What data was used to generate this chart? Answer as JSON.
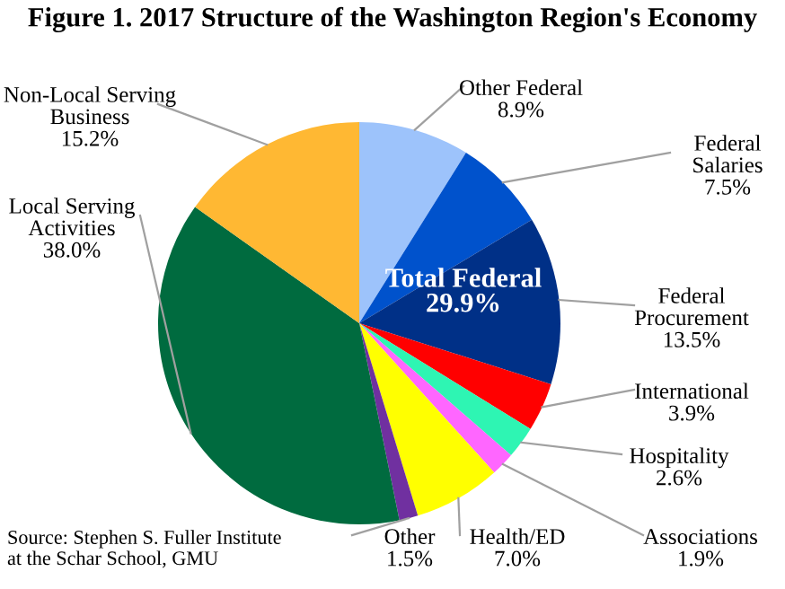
{
  "chart_data": {
    "type": "pie",
    "title": "Figure 1. 2017 Structure of the Washington Region's Economy",
    "categories": [
      "Other Federal",
      "Federal Salaries",
      "Federal Procurement",
      "International",
      "Hospitality",
      "Associations",
      "Health/ED",
      "Other",
      "Local Serving Activities",
      "Non-Local Serving Business"
    ],
    "values": [
      8.9,
      7.5,
      13.5,
      3.9,
      2.6,
      1.9,
      7.0,
      1.5,
      38.0,
      15.2
    ],
    "colors": [
      "#9dc3fb",
      "#0052cc",
      "#003087",
      "#ff0000",
      "#2ef5b3",
      "#ff66ff",
      "#ffff00",
      "#7030a0",
      "#006b3f",
      "#ffb833"
    ],
    "value_labels": [
      "8.9%",
      "7.5%",
      "13.5%",
      "3.9%",
      "2.6%",
      "1.9%",
      "7.0%",
      "1.5%",
      "38.0%",
      "15.2%"
    ],
    "annotations": [
      "Total Federal\n29.9%",
      "Source: Stephen S. Fuller Institute\nat the Schar School, GMU"
    ],
    "legend": false
  }
}
